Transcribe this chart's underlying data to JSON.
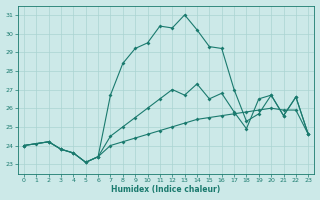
{
  "xlabel": "Humidex (Indice chaleur)",
  "background_color": "#cce9e8",
  "grid_color": "#aad4d2",
  "line_color": "#1a7a6e",
  "xlim": [
    -0.5,
    23.5
  ],
  "ylim": [
    22.5,
    31.5
  ],
  "xticks": [
    0,
    1,
    2,
    3,
    4,
    5,
    6,
    7,
    8,
    9,
    10,
    11,
    12,
    13,
    14,
    15,
    16,
    17,
    18,
    19,
    20,
    21,
    22,
    23
  ],
  "yticks": [
    23,
    24,
    25,
    26,
    27,
    28,
    29,
    30,
    31
  ],
  "line1_x": [
    0,
    1,
    2,
    3,
    4,
    5,
    6,
    7,
    8,
    9,
    10,
    11,
    12,
    13,
    14,
    15,
    16,
    17,
    18,
    19,
    20,
    21,
    22,
    23
  ],
  "line1_y": [
    24.0,
    24.1,
    24.2,
    23.8,
    23.6,
    23.1,
    23.4,
    24.0,
    24.2,
    24.4,
    24.6,
    24.8,
    25.0,
    25.2,
    25.4,
    25.5,
    25.6,
    25.7,
    25.8,
    25.9,
    26.0,
    25.9,
    25.9,
    24.6
  ],
  "line2_x": [
    0,
    2,
    3,
    4,
    5,
    6,
    7,
    8,
    9,
    10,
    11,
    12,
    13,
    14,
    15,
    16,
    17,
    18,
    19,
    20,
    21,
    22,
    23
  ],
  "line2_y": [
    24.0,
    24.2,
    23.8,
    23.6,
    23.1,
    23.4,
    24.5,
    25.0,
    25.5,
    26.0,
    26.5,
    27.0,
    26.7,
    27.3,
    26.5,
    26.8,
    25.8,
    24.9,
    26.5,
    26.7,
    25.6,
    26.6,
    24.6
  ],
  "line3_x": [
    0,
    2,
    3,
    4,
    5,
    6,
    7,
    8,
    9,
    10,
    11,
    12,
    13,
    14,
    15,
    16,
    17,
    18,
    19,
    20,
    21,
    22,
    23
  ],
  "line3_y": [
    24.0,
    24.2,
    23.8,
    23.6,
    23.1,
    23.4,
    26.7,
    28.4,
    29.2,
    29.5,
    30.4,
    30.3,
    31.0,
    30.2,
    29.3,
    29.2,
    27.0,
    25.3,
    25.7,
    26.7,
    25.6,
    26.6,
    24.6
  ]
}
